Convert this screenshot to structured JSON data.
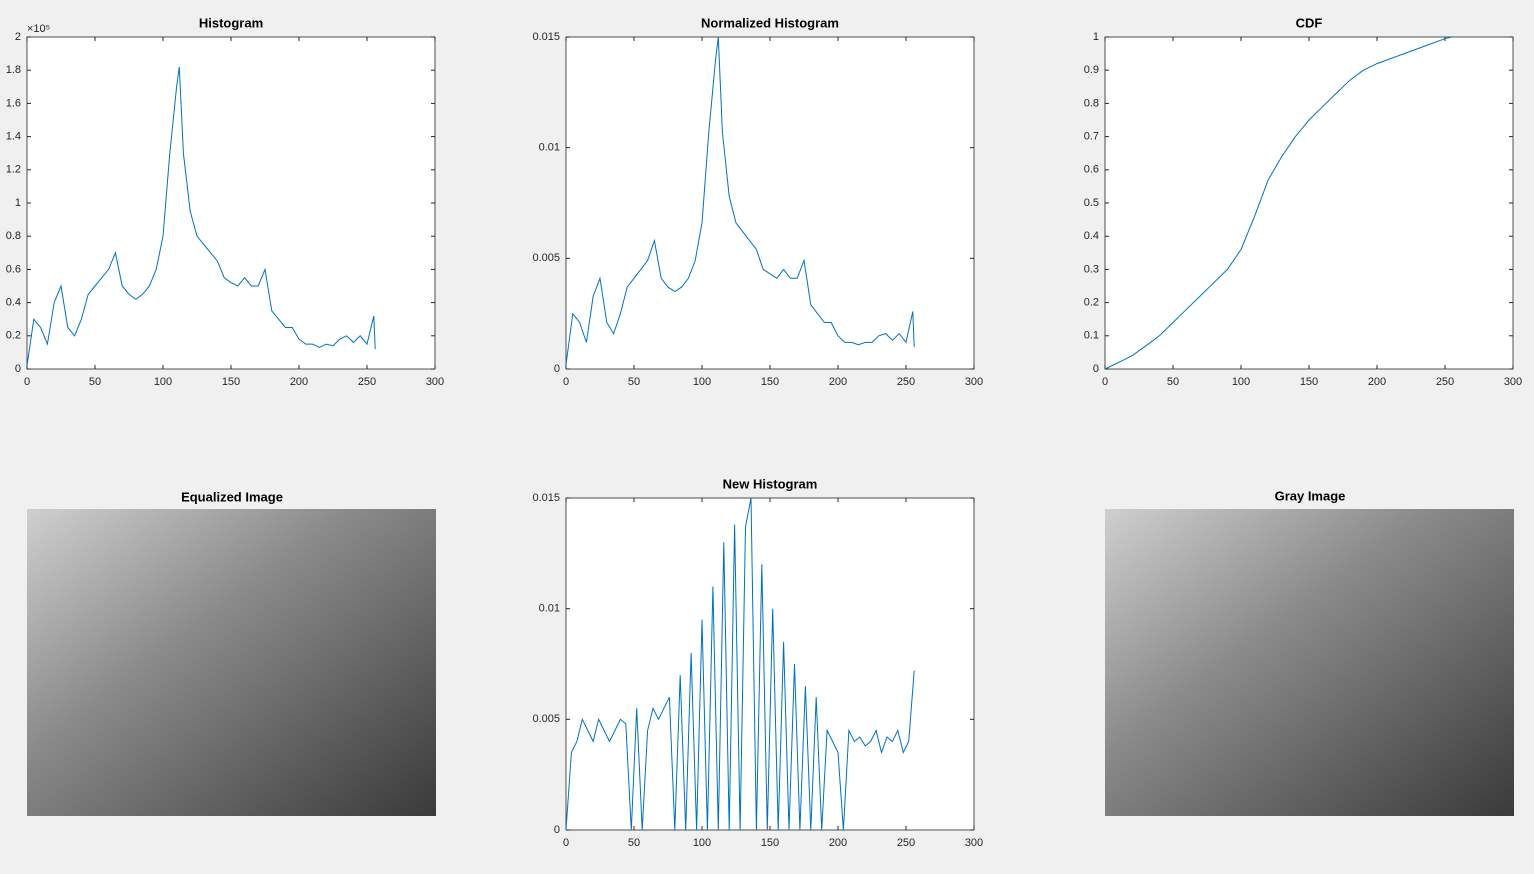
{
  "chart_data": [
    {
      "type": "line",
      "title": "Histogram",
      "y_exponent": "×10⁵",
      "color": "#0072bd",
      "x": [
        0,
        5,
        10,
        15,
        20,
        25,
        30,
        35,
        40,
        45,
        50,
        55,
        60,
        65,
        70,
        75,
        80,
        85,
        90,
        95,
        100,
        105,
        110,
        112,
        115,
        120,
        125,
        130,
        135,
        140,
        145,
        150,
        155,
        160,
        165,
        170,
        175,
        180,
        185,
        190,
        195,
        200,
        205,
        210,
        215,
        220,
        225,
        230,
        235,
        240,
        245,
        250,
        255,
        256
      ],
      "values": [
        0.02,
        0.3,
        0.25,
        0.15,
        0.4,
        0.5,
        0.25,
        0.2,
        0.3,
        0.45,
        0.5,
        0.55,
        0.6,
        0.7,
        0.5,
        0.45,
        0.42,
        0.45,
        0.5,
        0.6,
        0.8,
        1.3,
        1.7,
        1.82,
        1.3,
        0.95,
        0.8,
        0.75,
        0.7,
        0.65,
        0.55,
        0.52,
        0.5,
        0.55,
        0.5,
        0.5,
        0.6,
        0.35,
        0.3,
        0.25,
        0.25,
        0.18,
        0.15,
        0.15,
        0.13,
        0.15,
        0.14,
        0.18,
        0.2,
        0.16,
        0.2,
        0.15,
        0.32,
        0.12
      ],
      "xlim": [
        0,
        300
      ],
      "xticks": [
        0,
        50,
        100,
        150,
        200,
        250,
        300
      ],
      "ylim": [
        0,
        2
      ],
      "yticks": [
        0,
        0.2,
        0.4,
        0.6,
        0.8,
        1,
        1.2,
        1.4,
        1.6,
        1.8,
        2
      ]
    },
    {
      "type": "line",
      "title": "Normalized Histogram",
      "color": "#0072bd",
      "x": [
        0,
        5,
        10,
        15,
        20,
        25,
        30,
        35,
        40,
        45,
        50,
        55,
        60,
        65,
        70,
        75,
        80,
        85,
        90,
        95,
        100,
        105,
        110,
        112,
        115,
        120,
        125,
        130,
        135,
        140,
        145,
        150,
        155,
        160,
        165,
        170,
        175,
        180,
        185,
        190,
        195,
        200,
        205,
        210,
        215,
        220,
        225,
        230,
        235,
        240,
        245,
        250,
        255,
        256
      ],
      "values": [
        0.0002,
        0.0025,
        0.0021,
        0.0012,
        0.0033,
        0.0041,
        0.0021,
        0.0016,
        0.0025,
        0.0037,
        0.0041,
        0.0045,
        0.0049,
        0.0058,
        0.0041,
        0.0037,
        0.0035,
        0.0037,
        0.0041,
        0.0049,
        0.0066,
        0.0107,
        0.014,
        0.015,
        0.0107,
        0.0078,
        0.0066,
        0.0062,
        0.0058,
        0.0054,
        0.0045,
        0.0043,
        0.0041,
        0.0045,
        0.0041,
        0.0041,
        0.0049,
        0.0029,
        0.0025,
        0.0021,
        0.0021,
        0.0015,
        0.0012,
        0.0012,
        0.0011,
        0.0012,
        0.0012,
        0.0015,
        0.0016,
        0.0013,
        0.0016,
        0.0012,
        0.0026,
        0.001
      ],
      "xlim": [
        0,
        300
      ],
      "xticks": [
        0,
        50,
        100,
        150,
        200,
        250,
        300
      ],
      "ylim": [
        0,
        0.015
      ],
      "yticks": [
        0,
        0.005,
        0.01,
        0.015
      ]
    },
    {
      "type": "line",
      "title": "CDF",
      "color": "#0072bd",
      "x": [
        0,
        10,
        20,
        30,
        40,
        50,
        60,
        70,
        80,
        90,
        100,
        110,
        120,
        130,
        140,
        150,
        160,
        170,
        180,
        190,
        200,
        210,
        220,
        230,
        240,
        250,
        255
      ],
      "values": [
        0,
        0.02,
        0.04,
        0.07,
        0.1,
        0.14,
        0.18,
        0.22,
        0.26,
        0.3,
        0.36,
        0.46,
        0.57,
        0.64,
        0.7,
        0.75,
        0.79,
        0.83,
        0.87,
        0.9,
        0.92,
        0.935,
        0.95,
        0.965,
        0.98,
        0.995,
        1
      ],
      "xlim": [
        0,
        300
      ],
      "xticks": [
        0,
        50,
        100,
        150,
        200,
        250,
        300
      ],
      "ylim": [
        0,
        1
      ],
      "yticks": [
        0,
        0.1,
        0.2,
        0.3,
        0.4,
        0.5,
        0.6,
        0.7,
        0.8,
        0.9,
        1
      ]
    },
    {
      "type": "line",
      "title": "New Histogram",
      "color": "#0072bd",
      "x": [
        0,
        4,
        8,
        12,
        16,
        20,
        24,
        28,
        32,
        36,
        40,
        44,
        48,
        52,
        56,
        60,
        64,
        68,
        72,
        76,
        80,
        84,
        88,
        92,
        96,
        100,
        104,
        108,
        112,
        116,
        120,
        124,
        128,
        132,
        136,
        140,
        144,
        148,
        152,
        156,
        160,
        164,
        168,
        172,
        176,
        180,
        184,
        188,
        192,
        196,
        200,
        204,
        208,
        212,
        216,
        220,
        224,
        228,
        232,
        236,
        240,
        244,
        248,
        252,
        256
      ],
      "values": [
        0,
        0.0035,
        0.004,
        0.005,
        0.0045,
        0.004,
        0.005,
        0.0045,
        0.004,
        0.0045,
        0.005,
        0.0048,
        0,
        0.0055,
        0,
        0.0045,
        0.0055,
        0.005,
        0.0055,
        0.006,
        0,
        0.007,
        0,
        0.008,
        0,
        0.0095,
        0,
        0.011,
        0,
        0.013,
        0,
        0.0138,
        0,
        0.0137,
        0.015,
        0,
        0.012,
        0,
        0.01,
        0,
        0.0085,
        0,
        0.0075,
        0,
        0.0065,
        0,
        0.006,
        0,
        0.0045,
        0.004,
        0.0035,
        0,
        0.0045,
        0.004,
        0.0042,
        0.0038,
        0.004,
        0.0045,
        0.0035,
        0.0042,
        0.004,
        0.0045,
        0.0035,
        0.004,
        0.0072
      ],
      "xlim": [
        0,
        300
      ],
      "xticks": [
        0,
        50,
        100,
        150,
        200,
        250,
        300
      ],
      "ylim": [
        0,
        0.015
      ],
      "yticks": [
        0,
        0.005,
        0.01,
        0.015
      ]
    }
  ],
  "images": [
    {
      "title": "Equalized Image"
    },
    {
      "title": "Gray Image"
    }
  ]
}
